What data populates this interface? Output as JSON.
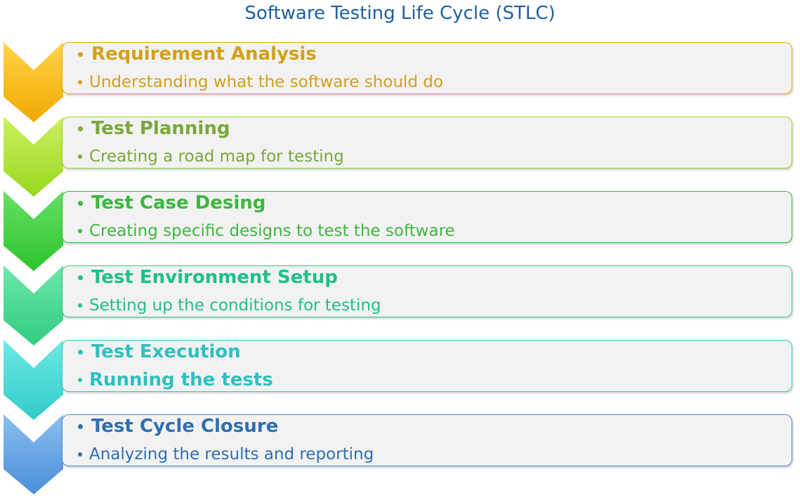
{
  "title": "Software Testing Life Cycle (STLC)",
  "steps": [
    {
      "title": "Requirement Analysis",
      "description": "Understanding what the software should do"
    },
    {
      "title": "Test Planning",
      "description": "Creating a road map for testing"
    },
    {
      "title": "Test Case Desing",
      "description": "Creating specific designs to test the software"
    },
    {
      "title": "Test Environment Setup",
      "description": "Setting up the conditions for testing"
    },
    {
      "title": "Test Execution",
      "description": "Running the tests"
    },
    {
      "title": "Test Cycle Closure",
      "description": "Analyzing the results and reporting"
    }
  ]
}
